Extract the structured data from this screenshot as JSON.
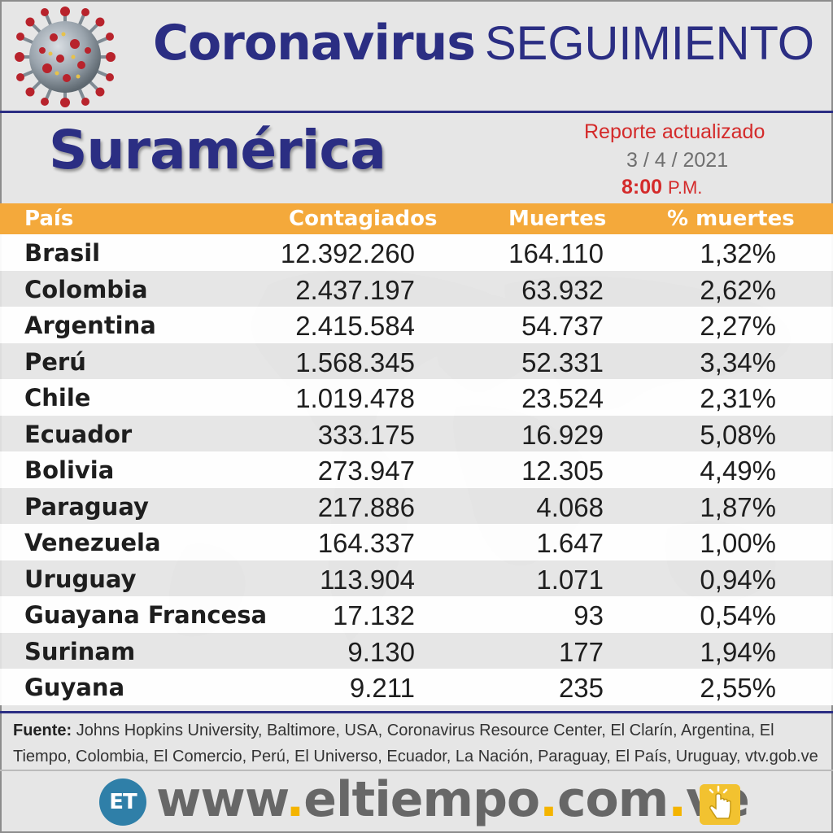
{
  "header": {
    "title_main": "Coronavirus",
    "title_sub": "SEGUIMIENTO",
    "region": "Suramérica",
    "report_label": "Reporte actualizado",
    "report_date": "3 / 4 / 2021",
    "report_time": "8:00",
    "report_time_suffix": "P.M."
  },
  "table": {
    "columns": [
      "País",
      "Contagiados",
      "Muertes",
      "% muertes"
    ],
    "rows": [
      [
        "Brasil",
        "12.392.260",
        "164.110",
        "1,32%"
      ],
      [
        "Colombia",
        "2.437.197",
        "63.932",
        "2,62%"
      ],
      [
        "Argentina",
        "2.415.584",
        "54.737",
        "2,27%"
      ],
      [
        "Perú",
        "1.568.345",
        "52.331",
        "3,34%"
      ],
      [
        "Chile",
        "1.019.478",
        "23.524",
        "2,31%"
      ],
      [
        "Ecuador",
        "333.175",
        "16.929",
        "5,08%"
      ],
      [
        "Bolivia",
        "273.947",
        "12.305",
        "4,49%"
      ],
      [
        "Paraguay",
        "217.886",
        "4.068",
        "1,87%"
      ],
      [
        "Venezuela",
        "164.337",
        "1.647",
        "1,00%"
      ],
      [
        "Uruguay",
        "113.904",
        "1.071",
        "0,94%"
      ],
      [
        "Guayana Francesa",
        "17.132",
        "93",
        "0,54%"
      ],
      [
        "Surinam",
        "9.130",
        "177",
        "1,94%"
      ],
      [
        "Guyana",
        "9.211",
        "235",
        "2,55%"
      ]
    ]
  },
  "source": {
    "label": "Fuente:",
    "text": "Johns Hopkins University, Baltimore, USA, Coronavirus Resource Center,  El Clarín, Argentina, El Tiempo, Colombia, El Comercio, Perú, El Universo, Ecuador, La Nación, Paraguay, El País, Uruguay, vtv.gob.ve"
  },
  "footer": {
    "logo_text": "ET",
    "url_parts": [
      "www",
      ".",
      "eltiempo",
      ".",
      "com",
      ".",
      "ve"
    ]
  },
  "colors": {
    "navy": "#2b2e83",
    "orange": "#f4a93b",
    "red": "#d42a2a",
    "yellow": "#f4b400",
    "logo_blue": "#2f7fa8"
  },
  "icons": [
    "coronavirus-illustration",
    "world-map-background",
    "tap-finger-icon"
  ]
}
